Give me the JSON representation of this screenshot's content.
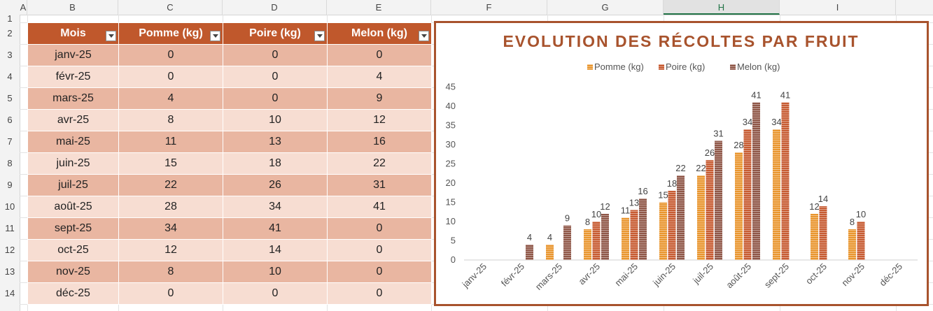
{
  "columns": [
    "A",
    "B",
    "C",
    "D",
    "E",
    "F",
    "G",
    "H",
    "I"
  ],
  "selected_column": "H",
  "rows": [
    "1",
    "2",
    "3",
    "4",
    "5",
    "6",
    "7",
    "8",
    "9",
    "10",
    "11",
    "12",
    "13",
    "14"
  ],
  "table": {
    "headers": [
      "Mois",
      "Pomme (kg)",
      "Poire (kg)",
      "Melon (kg)"
    ],
    "rows": [
      [
        "janv-25",
        "0",
        "0",
        "0"
      ],
      [
        "févr-25",
        "0",
        "0",
        "4"
      ],
      [
        "mars-25",
        "4",
        "0",
        "9"
      ],
      [
        "avr-25",
        "8",
        "10",
        "12"
      ],
      [
        "mai-25",
        "11",
        "13",
        "16"
      ],
      [
        "juin-25",
        "15",
        "18",
        "22"
      ],
      [
        "juil-25",
        "22",
        "26",
        "31"
      ],
      [
        "août-25",
        "28",
        "34",
        "41"
      ],
      [
        "sept-25",
        "34",
        "41",
        "0"
      ],
      [
        "oct-25",
        "12",
        "14",
        "0"
      ],
      [
        "nov-25",
        "8",
        "10",
        "0"
      ],
      [
        "déc-25",
        "0",
        "0",
        "0"
      ]
    ]
  },
  "chart_data": {
    "type": "bar",
    "title": "EVOLUTION DES RÉCOLTES PAR FRUIT",
    "legend_position": "top",
    "categories": [
      "janv-25",
      "févr-25",
      "mars-25",
      "avr-25",
      "mai-25",
      "juin-25",
      "juil-25",
      "août-25",
      "sept-25",
      "oct-25",
      "nov-25",
      "déc-25"
    ],
    "series": [
      {
        "name": "Pomme (kg)",
        "color": "#e9962f",
        "values": [
          0,
          0,
          4,
          8,
          11,
          15,
          22,
          28,
          34,
          12,
          8,
          0
        ]
      },
      {
        "name": "Poire (kg)",
        "color": "#c75b32",
        "values": [
          0,
          0,
          0,
          10,
          13,
          18,
          26,
          34,
          41,
          14,
          10,
          0
        ]
      },
      {
        "name": "Melon (kg)",
        "color": "#8f5748",
        "values": [
          0,
          4,
          9,
          12,
          16,
          22,
          31,
          41,
          0,
          0,
          0,
          0
        ]
      }
    ],
    "ylim": [
      0,
      45
    ],
    "yticks": [
      0,
      5,
      10,
      15,
      20,
      25,
      30,
      35,
      40,
      45
    ],
    "grid": false
  }
}
